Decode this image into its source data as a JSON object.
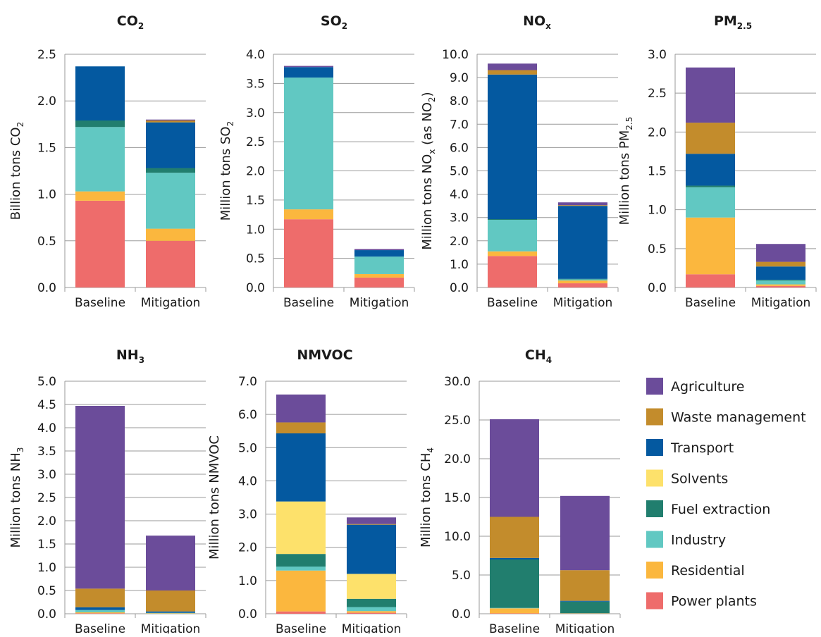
{
  "colors": {
    "Agriculture": "#6b4c9a",
    "Waste management": "#c38c2c",
    "Transport": "#0459a0",
    "Solvents": "#fde16b",
    "Fuel extraction": "#217e6e",
    "Industry": "#61c8c2",
    "Residential": "#fbb73e",
    "Power plants": "#ee6c6b",
    "grid": "#9a9a9a"
  },
  "legend": {
    "items": [
      "Agriculture",
      "Waste management",
      "Transport",
      "Solvents",
      "Fuel extraction",
      "Industry",
      "Residential",
      "Power plants"
    ]
  },
  "chart_data": [
    {
      "type": "bar",
      "stacked": true,
      "title": "CO2",
      "title_base": "CO",
      "title_sub": "2",
      "ylabel": "Billion tons CO2",
      "ylabel_base": "Billion tons CO",
      "ylabel_sub": "2",
      "ylabel_post": "",
      "ylim": [
        0,
        2.5
      ],
      "yticks": [
        "0.0",
        "0.5",
        "1.0",
        "1.5",
        "2.0",
        "2.5"
      ],
      "categories": [
        "Baseline",
        "Mitigation"
      ],
      "series": [
        {
          "name": "Power plants",
          "values": [
            0.93,
            0.5
          ]
        },
        {
          "name": "Residential",
          "values": [
            0.1,
            0.13
          ]
        },
        {
          "name": "Industry",
          "values": [
            0.69,
            0.6
          ]
        },
        {
          "name": "Fuel extraction",
          "values": [
            0.07,
            0.05
          ]
        },
        {
          "name": "Solvents",
          "values": [
            0,
            0
          ]
        },
        {
          "name": "Transport",
          "values": [
            0.58,
            0.49
          ]
        },
        {
          "name": "Waste management",
          "values": [
            0,
            0.02
          ]
        },
        {
          "name": "Agriculture",
          "values": [
            0,
            0.01
          ]
        }
      ]
    },
    {
      "type": "bar",
      "stacked": true,
      "title": "SO2",
      "title_base": "SO",
      "title_sub": "2",
      "ylabel": "Million tons SO2",
      "ylabel_base": "Million tons SO",
      "ylabel_sub": "2",
      "ylabel_post": "",
      "ylim": [
        0,
        4.0
      ],
      "yticks": [
        "0.0",
        "0.5",
        "1.0",
        "1.5",
        "2.0",
        "2.5",
        "3.0",
        "3.5",
        "4.0"
      ],
      "categories": [
        "Baseline",
        "Mitigation"
      ],
      "series": [
        {
          "name": "Power plants",
          "values": [
            1.17,
            0.17
          ]
        },
        {
          "name": "Residential",
          "values": [
            0.17,
            0.06
          ]
        },
        {
          "name": "Industry",
          "values": [
            2.26,
            0.3
          ]
        },
        {
          "name": "Fuel extraction",
          "values": [
            0,
            0
          ]
        },
        {
          "name": "Solvents",
          "values": [
            0,
            0
          ]
        },
        {
          "name": "Transport",
          "values": [
            0.18,
            0.11
          ]
        },
        {
          "name": "Waste management",
          "values": [
            0,
            0
          ]
        },
        {
          "name": "Agriculture",
          "values": [
            0.02,
            0.02
          ]
        }
      ]
    },
    {
      "type": "bar",
      "stacked": true,
      "title": "NOx",
      "title_base": "NO",
      "title_sub": "x",
      "ylabel": "Million tons NOx (as NO2)",
      "ylabel_base": "Million tons NO",
      "ylabel_sub": "x",
      "ylabel_post": " (as NO",
      "ylabel_sub2": "2",
      "ylabel_end": ")",
      "ylim": [
        0,
        10.0
      ],
      "yticks": [
        "0.0",
        "1.0",
        "2.0",
        "3.0",
        "4.0",
        "5.0",
        "6.0",
        "7.0",
        "8.0",
        "9.0",
        "10.0"
      ],
      "categories": [
        "Baseline",
        "Mitigation"
      ],
      "series": [
        {
          "name": "Power plants",
          "values": [
            1.35,
            0.18
          ]
        },
        {
          "name": "Residential",
          "values": [
            0.2,
            0.12
          ]
        },
        {
          "name": "Industry",
          "values": [
            1.35,
            0.05
          ]
        },
        {
          "name": "Fuel extraction",
          "values": [
            0.03,
            0.02
          ]
        },
        {
          "name": "Solvents",
          "values": [
            0,
            0
          ]
        },
        {
          "name": "Transport",
          "values": [
            6.2,
            3.13
          ]
        },
        {
          "name": "Waste management",
          "values": [
            0.19,
            0.03
          ]
        },
        {
          "name": "Agriculture",
          "values": [
            0.28,
            0.12
          ]
        }
      ]
    },
    {
      "type": "bar",
      "stacked": true,
      "title": "PM2.5",
      "title_base": "PM",
      "title_sub": "2.5",
      "ylabel": "Million tons PM2.5",
      "ylabel_base": "Million tons PM",
      "ylabel_sub": "2.5",
      "ylabel_post": "",
      "ylim": [
        0,
        3.0
      ],
      "yticks": [
        "0.0",
        "0.5",
        "1.0",
        "1.5",
        "2.0",
        "2.5",
        "3.0"
      ],
      "categories": [
        "Baseline",
        "Mitigation"
      ],
      "series": [
        {
          "name": "Power plants",
          "values": [
            0.17,
            0.02
          ]
        },
        {
          "name": "Residential",
          "values": [
            0.73,
            0.02
          ]
        },
        {
          "name": "Industry",
          "values": [
            0.39,
            0.05
          ]
        },
        {
          "name": "Fuel extraction",
          "values": [
            0.02,
            0.01
          ]
        },
        {
          "name": "Solvents",
          "values": [
            0,
            0
          ]
        },
        {
          "name": "Transport",
          "values": [
            0.41,
            0.17
          ]
        },
        {
          "name": "Waste management",
          "values": [
            0.4,
            0.06
          ]
        },
        {
          "name": "Agriculture",
          "values": [
            0.71,
            0.23
          ]
        }
      ]
    },
    {
      "type": "bar",
      "stacked": true,
      "title": "NH3",
      "title_base": "NH",
      "title_sub": "3",
      "ylabel": "Million tons NH3",
      "ylabel_base": "Million tons NH",
      "ylabel_sub": "3",
      "ylabel_post": "",
      "ylim": [
        0,
        5.0
      ],
      "yticks": [
        "0.0",
        "0.5",
        "1.0",
        "1.5",
        "2.0",
        "2.5",
        "3.0",
        "3.5",
        "4.0",
        "4.5",
        "5.0"
      ],
      "categories": [
        "Baseline",
        "Mitigation"
      ],
      "series": [
        {
          "name": "Power plants",
          "values": [
            0.01,
            0
          ]
        },
        {
          "name": "Residential",
          "values": [
            0.02,
            0.01
          ]
        },
        {
          "name": "Industry",
          "values": [
            0.05,
            0.01
          ]
        },
        {
          "name": "Fuel extraction",
          "values": [
            0,
            0
          ]
        },
        {
          "name": "Solvents",
          "values": [
            0,
            0
          ]
        },
        {
          "name": "Transport",
          "values": [
            0.06,
            0.03
          ]
        },
        {
          "name": "Waste management",
          "values": [
            0.4,
            0.45
          ]
        },
        {
          "name": "Agriculture",
          "values": [
            3.93,
            1.18
          ]
        }
      ]
    },
    {
      "type": "bar",
      "stacked": true,
      "title": "NMVOC",
      "title_base": "NMVOC",
      "title_sub": "",
      "ylabel": "Million tons NMVOC",
      "ylabel_base": "Million tons NMVOC",
      "ylabel_sub": "",
      "ylabel_post": "",
      "ylim": [
        0,
        7.0
      ],
      "yticks": [
        "0.0",
        "1.0",
        "2.0",
        "3.0",
        "4.0",
        "5.0",
        "6.0",
        "7.0"
      ],
      "categories": [
        "Baseline",
        "Mitigation"
      ],
      "series": [
        {
          "name": "Power plants",
          "values": [
            0.07,
            0.03
          ]
        },
        {
          "name": "Residential",
          "values": [
            1.23,
            0.05
          ]
        },
        {
          "name": "Industry",
          "values": [
            0.12,
            0.12
          ]
        },
        {
          "name": "Fuel extraction",
          "values": [
            0.38,
            0.25
          ]
        },
        {
          "name": "Solvents",
          "values": [
            1.58,
            0.75
          ]
        },
        {
          "name": "Transport",
          "values": [
            2.05,
            1.48
          ]
        },
        {
          "name": "Waste management",
          "values": [
            0.33,
            0.02
          ]
        },
        {
          "name": "Agriculture",
          "values": [
            0.84,
            0.2
          ]
        }
      ]
    },
    {
      "type": "bar",
      "stacked": true,
      "title": "CH4",
      "title_base": "CH",
      "title_sub": "4",
      "ylabel": "Million tons CH4",
      "ylabel_base": "Million tons CH",
      "ylabel_sub": "4",
      "ylabel_post": "",
      "ylim": [
        0,
        30.0
      ],
      "yticks": [
        "0.0",
        "5.0",
        "10.0",
        "15.0",
        "20.0",
        "25.0",
        "30.0"
      ],
      "categories": [
        "Baseline",
        "Mitigation"
      ],
      "series": [
        {
          "name": "Power plants",
          "values": [
            0.05,
            0.02
          ]
        },
        {
          "name": "Residential",
          "values": [
            0.65,
            0.03
          ]
        },
        {
          "name": "Industry",
          "values": [
            0.05,
            0.02
          ]
        },
        {
          "name": "Fuel extraction",
          "values": [
            6.25,
            1.5
          ]
        },
        {
          "name": "Solvents",
          "values": [
            0,
            0
          ]
        },
        {
          "name": "Transport",
          "values": [
            0.2,
            0.1
          ]
        },
        {
          "name": "Waste management",
          "values": [
            5.3,
            3.95
          ]
        },
        {
          "name": "Agriculture",
          "values": [
            12.6,
            9.58
          ]
        }
      ]
    }
  ]
}
